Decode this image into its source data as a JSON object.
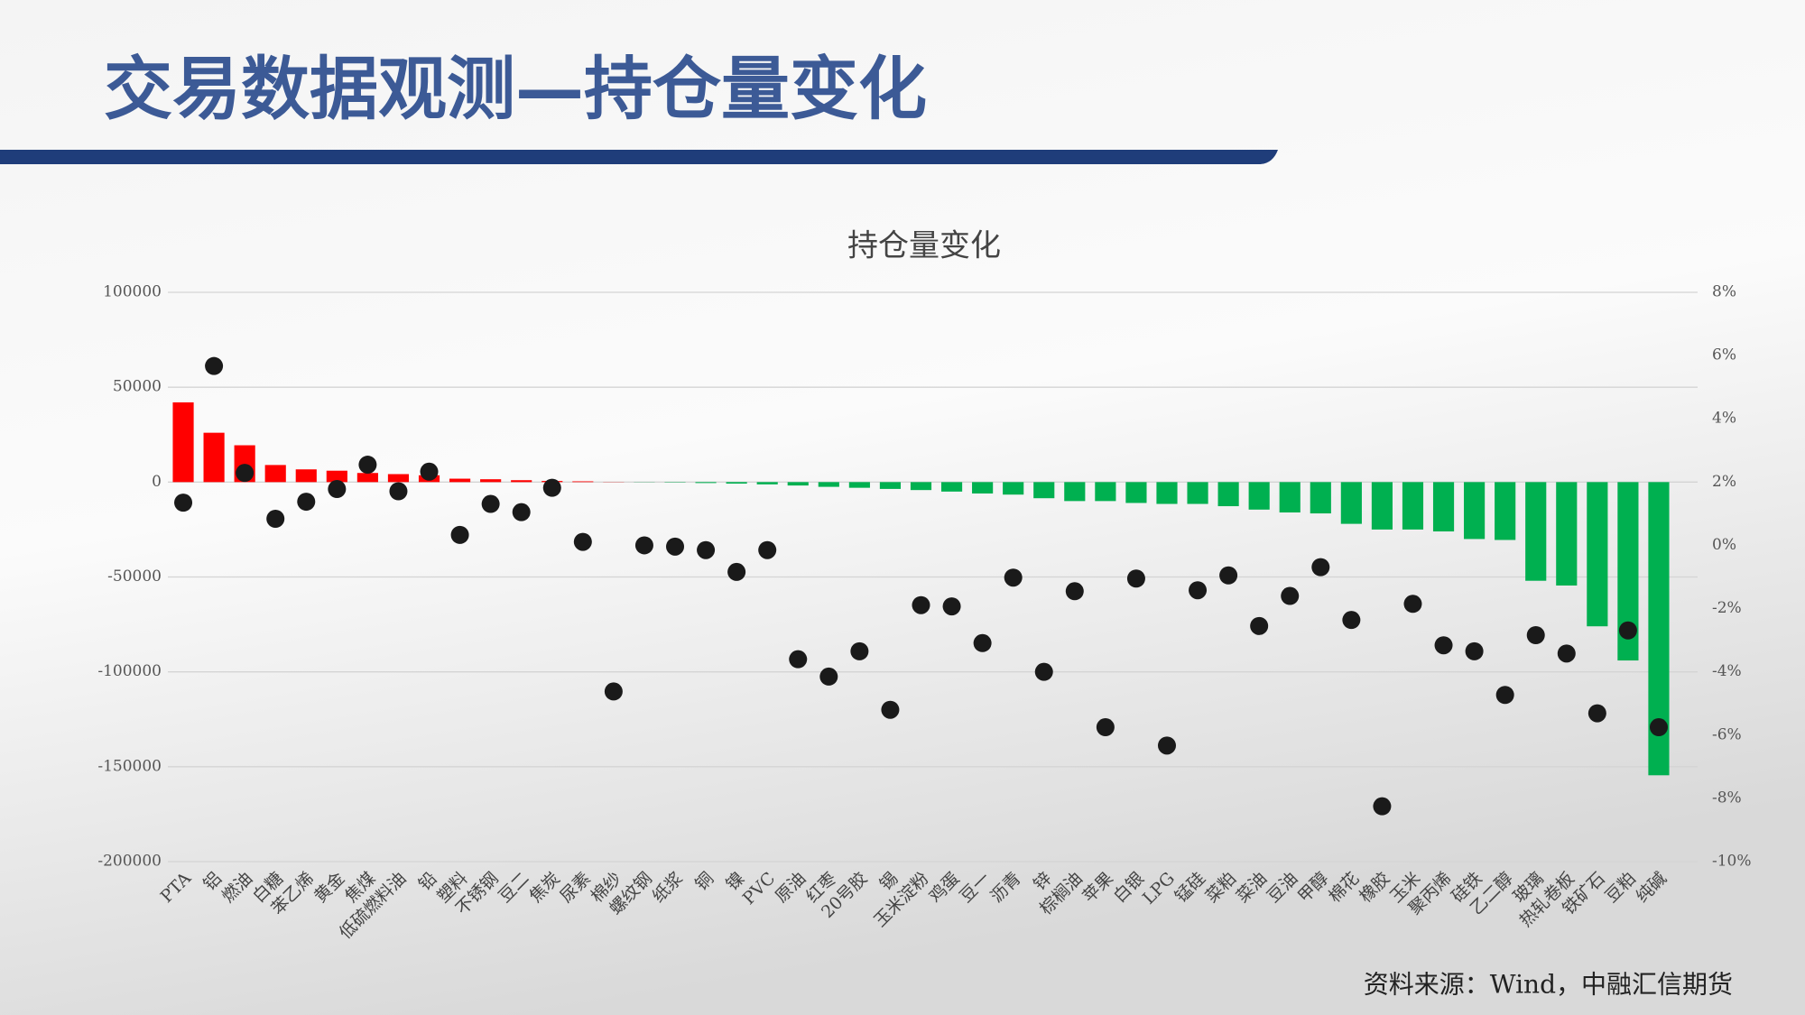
{
  "header": {
    "title": "交易数据观测—持仓量变化"
  },
  "chart_data": {
    "type": "combo",
    "title": "持仓量变化",
    "categories": [
      "PTA",
      "铝",
      "燃油",
      "白糖",
      "苯乙烯",
      "黄金",
      "焦煤",
      "低硫燃料油",
      "铅",
      "塑料",
      "不锈钢",
      "豆二",
      "焦炭",
      "尿素",
      "棉纱",
      "螺纹钢",
      "纸浆",
      "铜",
      "镍",
      "PVC",
      "原油",
      "红枣",
      "20号胶",
      "锡",
      "玉米淀粉",
      "鸡蛋",
      "豆一",
      "沥青",
      "锌",
      "棕榈油",
      "苹果",
      "白银",
      "LPG",
      "锰硅",
      "菜粕",
      "菜油",
      "豆油",
      "甲醇",
      "棉花",
      "橡胶",
      "玉米",
      "聚丙烯",
      "硅铁",
      "乙二醇",
      "玻璃",
      "热轧卷板",
      "铁矿石",
      "豆粕",
      "纯碱"
    ],
    "series": [
      {
        "type": "bar",
        "positive_color": "#ff0000",
        "negative_color": "#00b050",
        "values": [
          42000,
          26000,
          19400,
          9000,
          6700,
          6000,
          4800,
          4200,
          3600,
          1800,
          1500,
          1000,
          600,
          400,
          100,
          -100,
          -200,
          -500,
          -800,
          -1200,
          -1800,
          -2500,
          -3000,
          -3600,
          -4200,
          -5000,
          -6000,
          -6600,
          -8500,
          -10000,
          -10000,
          -11000,
          -11500,
          -11500,
          -12700,
          -14500,
          -16000,
          -16500,
          -22000,
          -25000,
          -25000,
          -26000,
          -30000,
          -30500,
          -52000,
          -54500,
          -76000,
          -94000,
          -154500
        ]
      },
      {
        "type": "scatter",
        "axis": "y2",
        "color": "#1a1a1a",
        "values": [
          1.35,
          5.67,
          2.29,
          0.84,
          1.38,
          1.78,
          2.55,
          1.71,
          2.33,
          0.33,
          1.31,
          1.05,
          1.82,
          0.11,
          -4.62,
          0,
          -0.04,
          -0.15,
          -0.84,
          -0.15,
          -3.6,
          -4.15,
          -3.35,
          -5.2,
          -1.89,
          -1.93,
          -3.09,
          -1.02,
          -4.0,
          -1.45,
          -5.75,
          -1.05,
          -6.33,
          -1.42,
          -0.95,
          -2.55,
          -1.6,
          -0.69,
          -2.36,
          -8.25,
          -1.85,
          -3.16,
          -3.35,
          -4.73,
          -2.84,
          -3.42,
          -5.31,
          -2.69,
          -5.75
        ]
      }
    ],
    "ylim": [
      -200000,
      100000
    ],
    "yticks": [
      100000,
      50000,
      0,
      -50000,
      -100000,
      -150000,
      -200000
    ],
    "y2lim": [
      -10,
      8
    ],
    "y2ticks": [
      {
        "value": 8,
        "label": "8%"
      },
      {
        "value": 6,
        "label": "6%"
      },
      {
        "value": 4,
        "label": "4%"
      },
      {
        "value": 2,
        "label": "2%"
      },
      {
        "value": 0,
        "label": "0%"
      },
      {
        "value": -2,
        "label": "-2%"
      },
      {
        "value": -4,
        "label": "-4%"
      },
      {
        "value": -6,
        "label": "-6%"
      },
      {
        "value": -8,
        "label": "-8%"
      },
      {
        "value": -10,
        "label": "-10%"
      }
    ],
    "grid": true
  },
  "footer": {
    "source": "资料来源：Wind，中融汇信期货"
  }
}
